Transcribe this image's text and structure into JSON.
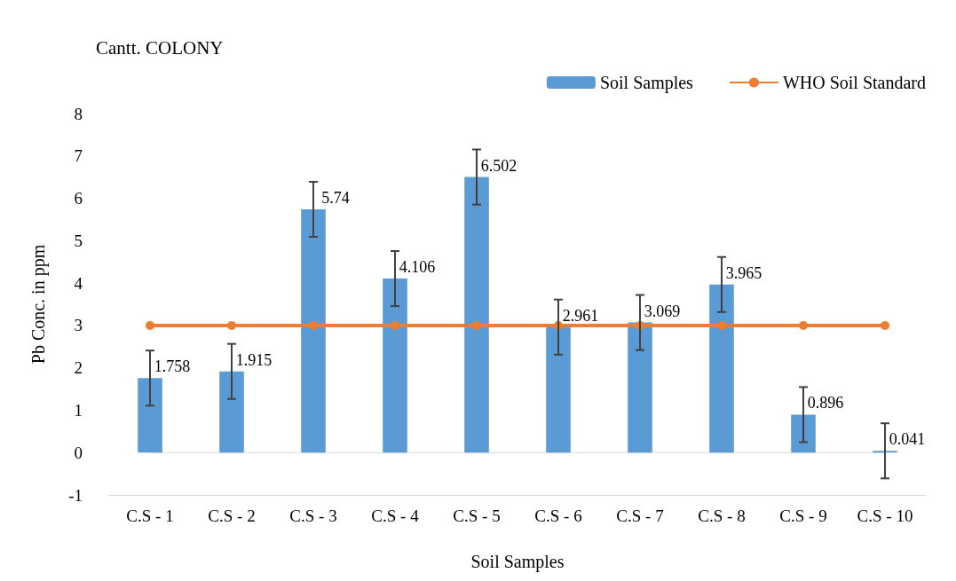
{
  "chart_data": {
    "type": "bar",
    "title": "Cantt. COLONY",
    "xlabel": "Soil Samples",
    "ylabel": "Pb Conc. in ppm",
    "categories": [
      "C.S - 1",
      "C.S - 2",
      "C.S - 3",
      "C.S - 4",
      "C.S - 5",
      "C.S - 6",
      "C.S - 7",
      "C.S - 8",
      "C.S - 9",
      "C.S - 10"
    ],
    "series": [
      {
        "name": "Soil Samples",
        "color": "#5b9bd5",
        "values": [
          1.758,
          1.915,
          5.74,
          4.106,
          6.502,
          2.961,
          3.069,
          3.965,
          0.896,
          0.041
        ],
        "errors": [
          0.65,
          0.65,
          0.65,
          0.65,
          0.65,
          0.65,
          0.65,
          0.65,
          0.65,
          0.65
        ],
        "data_labels": true
      },
      {
        "name": "WHO Soil Standard",
        "type": "line",
        "color": "#ed7d31",
        "values": [
          3,
          3,
          3,
          3,
          3,
          3,
          3,
          3,
          3,
          3
        ],
        "marker": "circle"
      }
    ],
    "ylim": [
      -1,
      8
    ],
    "yticks": [
      -1,
      0,
      1,
      2,
      3,
      4,
      5,
      6,
      7,
      8
    ],
    "grid": false,
    "legend": "top right"
  }
}
